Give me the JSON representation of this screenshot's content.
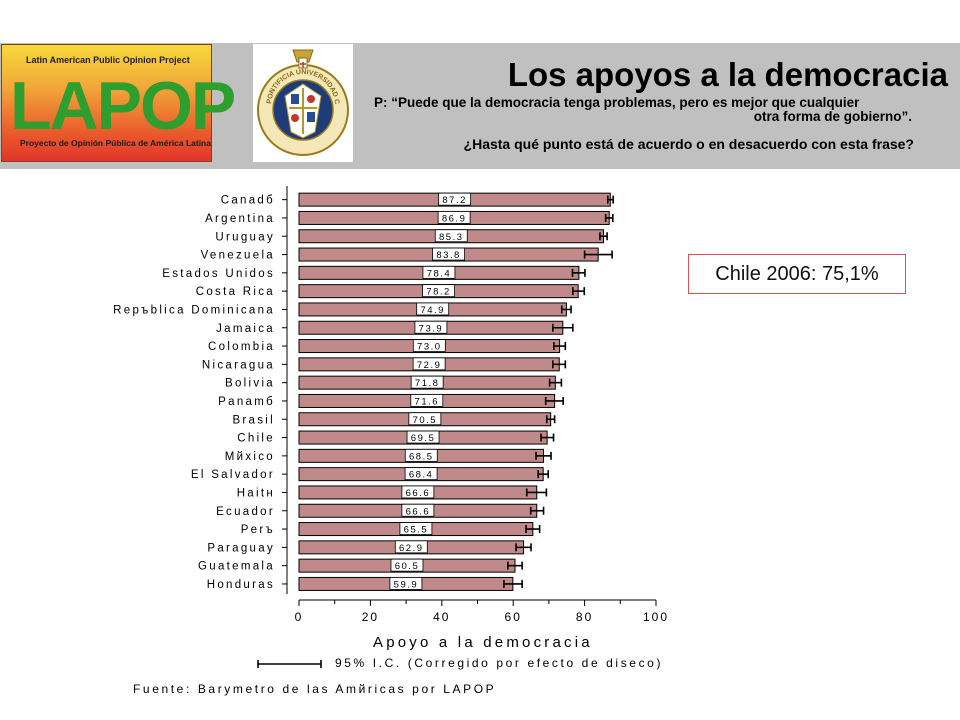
{
  "header": {
    "title": "Los apoyos a la democracia",
    "question_prefix": "P: “",
    "question_line1": "Puede que la democracia tenga problemas, pero es mejor que cualquier",
    "question_line2": "otra forma de gobierno”.",
    "question_2": "¿Hasta qué punto está de acuerdo o en desacuerdo con esta frase?"
  },
  "logo": {
    "top_text": "Latin American Public Opinion Project",
    "word": "LAPOP",
    "bottom_text": "Proyecto de Opinión Pública de América Latina",
    "seal_text": "PONTIFICIA UNIVERSIDAD CATOLICA DE CHILE"
  },
  "callout": "Chile 2006: 75,1%",
  "ci_legend": "95% I.C. (Corregido por efecto de diseco)",
  "source": "Fuente: Barymetro de las Amйricas por LAPOP",
  "colors": {
    "bar": "#c08a8a",
    "bar_stroke": "#000000",
    "banner": "#c0c0c0",
    "callout_border": "#e05050"
  },
  "chart_data": {
    "type": "bar",
    "orientation": "horizontal",
    "xlabel": "Apoyo a la democracia",
    "xlim": [
      0,
      100
    ],
    "xticks": [
      0,
      20,
      40,
      60,
      80,
      100
    ],
    "categories": [
      "Canadб",
      "Argentina",
      "Uruguay",
      "Venezuela",
      "Estados Unidos",
      "Costa Rica",
      "Repъblica Dominicana",
      "Jamaica",
      "Colombia",
      "Nicaragua",
      "Bolivia",
      "Panamб",
      "Brasil",
      "Chile",
      "Mйxico",
      "El Salvador",
      "Haitн",
      "Ecuador",
      "Perъ",
      "Paraguay",
      "Guatemala",
      "Honduras"
    ],
    "values": [
      87.2,
      86.9,
      85.3,
      83.8,
      78.4,
      78.2,
      74.9,
      73.9,
      73.0,
      72.9,
      71.8,
      71.6,
      70.5,
      69.5,
      68.5,
      68.4,
      66.6,
      66.6,
      65.5,
      62.9,
      60.5,
      59.9
    ],
    "labels": [
      "87.2",
      "86.9",
      "85.3",
      "83.8",
      "78.4",
      "78.2",
      "74.9",
      "73.9",
      "73.0",
      "72.9",
      "71.8",
      "71.6",
      "70.5",
      "69.5",
      "68.5",
      "68.4",
      "66.6",
      "66.6",
      "65.5",
      "62.9",
      "60.5",
      "59.9"
    ],
    "ci_low": [
      86.5,
      85.9,
      84.3,
      80.0,
      76.6,
      76.7,
      73.6,
      71.1,
      71.4,
      71.1,
      70.2,
      69.1,
      69.4,
      67.8,
      66.4,
      67.0,
      63.8,
      64.9,
      63.6,
      60.8,
      58.5,
      57.4
    ],
    "ci_high": [
      88.0,
      87.9,
      86.3,
      87.7,
      80.1,
      79.9,
      76.2,
      76.7,
      74.6,
      74.6,
      73.5,
      74.0,
      71.6,
      71.3,
      70.6,
      69.8,
      69.3,
      68.5,
      67.4,
      65.0,
      62.5,
      62.5
    ],
    "grid": false
  }
}
